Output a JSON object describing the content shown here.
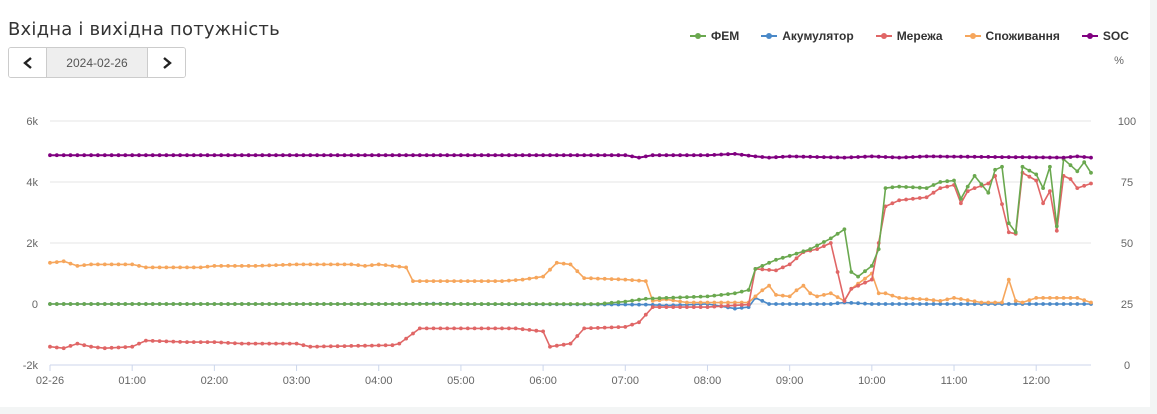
{
  "title": "Вхідна і вихідна потужність",
  "date_nav": {
    "date": "2024-02-26",
    "prev_icon": "chevron-left-icon",
    "next_icon": "chevron-right-icon"
  },
  "chart_data": {
    "type": "line",
    "title": "Вхідна і вихідна потужність",
    "x_unit": "time (HH:MM)",
    "x_ticks": [
      "02-26",
      "01:00",
      "02:00",
      "03:00",
      "04:00",
      "05:00",
      "06:00",
      "07:00",
      "08:00",
      "09:00",
      "10:00",
      "11:00",
      "12:00"
    ],
    "xlim": [
      "00:00",
      "12:40"
    ],
    "y_left": {
      "ticks": [
        "-2k",
        "0",
        "2k",
        "4k",
        "6k"
      ],
      "ylim": [
        -2000,
        6000
      ],
      "unit": "W"
    },
    "y_right": {
      "label": "%",
      "ticks": [
        "0",
        "25",
        "50",
        "75",
        "100"
      ],
      "ylim": [
        0,
        100
      ],
      "axis_of": "SOC"
    },
    "grid": true,
    "legend_position": "top-right",
    "series": [
      {
        "name": "ФЕМ",
        "color": "#6aa84f",
        "axis": "left",
        "points": [
          [
            "00:00",
            0
          ],
          [
            "06:40",
            0
          ],
          [
            "07:00",
            80
          ],
          [
            "07:15",
            170
          ],
          [
            "07:30",
            200
          ],
          [
            "08:00",
            250
          ],
          [
            "08:20",
            350
          ],
          [
            "08:30",
            460
          ],
          [
            "08:35",
            1150
          ],
          [
            "08:50",
            1450
          ],
          [
            "09:00",
            1580
          ],
          [
            "09:15",
            1800
          ],
          [
            "09:30",
            2150
          ],
          [
            "09:40",
            2450
          ],
          [
            "09:45",
            1050
          ],
          [
            "09:50",
            900
          ],
          [
            "10:00",
            1250
          ],
          [
            "10:05",
            1800
          ],
          [
            "10:10",
            3800
          ],
          [
            "10:20",
            3850
          ],
          [
            "10:40",
            3800
          ],
          [
            "10:50",
            4000
          ],
          [
            "11:00",
            4050
          ],
          [
            "11:05",
            3450
          ],
          [
            "11:10",
            3850
          ],
          [
            "11:15",
            4200
          ],
          [
            "11:25",
            3650
          ],
          [
            "11:30",
            4400
          ],
          [
            "11:35",
            4500
          ],
          [
            "11:40",
            2650
          ],
          [
            "11:45",
            2350
          ],
          [
            "11:50",
            4500
          ],
          [
            "12:00",
            4250
          ],
          [
            "12:05",
            3800
          ],
          [
            "12:10",
            4500
          ],
          [
            "12:15",
            2550
          ],
          [
            "12:20",
            4750
          ],
          [
            "12:25",
            4550
          ],
          [
            "12:30",
            4350
          ],
          [
            "12:35",
            4650
          ],
          [
            "12:40",
            4300
          ]
        ]
      },
      {
        "name": "Акумулятор",
        "color": "#4a89c8",
        "axis": "left",
        "points": [
          [
            "00:00",
            0
          ],
          [
            "04:20",
            0
          ],
          [
            "04:40",
            10
          ],
          [
            "05:00",
            0
          ],
          [
            "07:15",
            -20
          ],
          [
            "07:30",
            -50
          ],
          [
            "08:00",
            0
          ],
          [
            "08:20",
            -150
          ],
          [
            "08:30",
            -100
          ],
          [
            "08:35",
            200
          ],
          [
            "08:45",
            0
          ],
          [
            "09:30",
            0
          ],
          [
            "09:40",
            50
          ],
          [
            "10:00",
            0
          ],
          [
            "12:40",
            0
          ]
        ]
      },
      {
        "name": "Мережа",
        "color": "#e06666",
        "axis": "left",
        "points": [
          [
            "00:00",
            -1400
          ],
          [
            "00:10",
            -1450
          ],
          [
            "00:20",
            -1300
          ],
          [
            "00:30",
            -1400
          ],
          [
            "00:40",
            -1450
          ],
          [
            "01:00",
            -1400
          ],
          [
            "01:10",
            -1200
          ],
          [
            "01:40",
            -1250
          ],
          [
            "02:00",
            -1250
          ],
          [
            "02:20",
            -1300
          ],
          [
            "03:00",
            -1300
          ],
          [
            "03:10",
            -1400
          ],
          [
            "04:10",
            -1350
          ],
          [
            "04:15",
            -1300
          ],
          [
            "04:30",
            -800
          ],
          [
            "05:40",
            -800
          ],
          [
            "06:00",
            -900
          ],
          [
            "06:05",
            -1400
          ],
          [
            "06:20",
            -1300
          ],
          [
            "06:30",
            -800
          ],
          [
            "07:00",
            -750
          ],
          [
            "07:10",
            -600
          ],
          [
            "07:20",
            -100
          ],
          [
            "08:00",
            -100
          ],
          [
            "08:30",
            -20
          ],
          [
            "08:35",
            1150
          ],
          [
            "08:50",
            1100
          ],
          [
            "09:00",
            1300
          ],
          [
            "09:10",
            1700
          ],
          [
            "09:20",
            1800
          ],
          [
            "09:30",
            2000
          ],
          [
            "09:40",
            100
          ],
          [
            "09:45",
            500
          ],
          [
            "10:00",
            800
          ],
          [
            "10:10",
            3200
          ],
          [
            "10:20",
            3400
          ],
          [
            "10:40",
            3500
          ],
          [
            "10:50",
            3800
          ],
          [
            "11:00",
            3900
          ],
          [
            "11:05",
            3300
          ],
          [
            "11:10",
            3700
          ],
          [
            "11:15",
            3800
          ],
          [
            "11:25",
            3950
          ],
          [
            "11:30",
            4200
          ],
          [
            "11:40",
            2350
          ],
          [
            "11:45",
            2300
          ],
          [
            "11:50",
            4300
          ],
          [
            "12:00",
            4050
          ],
          [
            "12:05",
            3300
          ],
          [
            "12:10",
            3700
          ],
          [
            "12:15",
            2400
          ],
          [
            "12:20",
            4200
          ],
          [
            "12:25",
            4100
          ],
          [
            "12:30",
            3800
          ],
          [
            "12:40",
            3950
          ]
        ]
      },
      {
        "name": "Споживання",
        "color": "#f6a65c",
        "axis": "left",
        "points": [
          [
            "00:00",
            1350
          ],
          [
            "00:10",
            1400
          ],
          [
            "00:20",
            1250
          ],
          [
            "00:30",
            1300
          ],
          [
            "01:00",
            1300
          ],
          [
            "01:10",
            1200
          ],
          [
            "01:50",
            1200
          ],
          [
            "02:00",
            1250
          ],
          [
            "02:10",
            1250
          ],
          [
            "02:30",
            1250
          ],
          [
            "03:00",
            1300
          ],
          [
            "03:40",
            1300
          ],
          [
            "03:50",
            1250
          ],
          [
            "04:00",
            1300
          ],
          [
            "04:10",
            1250
          ],
          [
            "04:20",
            1200
          ],
          [
            "04:25",
            750
          ],
          [
            "05:30",
            750
          ],
          [
            "05:45",
            800
          ],
          [
            "06:00",
            900
          ],
          [
            "06:10",
            1350
          ],
          [
            "06:20",
            1300
          ],
          [
            "06:30",
            850
          ],
          [
            "07:00",
            800
          ],
          [
            "07:15",
            750
          ],
          [
            "07:20",
            100
          ],
          [
            "07:30",
            150
          ],
          [
            "07:45",
            50
          ],
          [
            "08:30",
            50
          ],
          [
            "08:35",
            250
          ],
          [
            "08:40",
            450
          ],
          [
            "08:45",
            600
          ],
          [
            "08:50",
            300
          ],
          [
            "09:00",
            250
          ],
          [
            "09:05",
            450
          ],
          [
            "09:10",
            600
          ],
          [
            "09:15",
            350
          ],
          [
            "09:20",
            250
          ],
          [
            "09:30",
            350
          ],
          [
            "09:40",
            100
          ],
          [
            "09:45",
            500
          ],
          [
            "10:00",
            1000
          ],
          [
            "10:05",
            350
          ],
          [
            "10:10",
            350
          ],
          [
            "10:20",
            200
          ],
          [
            "10:40",
            150
          ],
          [
            "10:50",
            100
          ],
          [
            "11:00",
            200
          ],
          [
            "11:20",
            50
          ],
          [
            "11:35",
            50
          ],
          [
            "11:40",
            800
          ],
          [
            "11:45",
            100
          ],
          [
            "11:50",
            50
          ],
          [
            "12:00",
            200
          ],
          [
            "12:30",
            200
          ],
          [
            "12:40",
            50
          ]
        ]
      },
      {
        "name": "SOC",
        "color": "#800080",
        "axis": "right",
        "points": [
          [
            "00:00",
            86
          ],
          [
            "07:00",
            86
          ],
          [
            "07:10",
            85
          ],
          [
            "07:20",
            86
          ],
          [
            "08:00",
            86
          ],
          [
            "08:20",
            86.5
          ],
          [
            "08:35",
            85.5
          ],
          [
            "08:45",
            85
          ],
          [
            "09:00",
            85.5
          ],
          [
            "09:40",
            85
          ],
          [
            "10:00",
            85.5
          ],
          [
            "10:20",
            85
          ],
          [
            "10:40",
            85.5
          ],
          [
            "12:20",
            85
          ],
          [
            "12:30",
            85.5
          ],
          [
            "12:40",
            85
          ]
        ]
      }
    ]
  }
}
